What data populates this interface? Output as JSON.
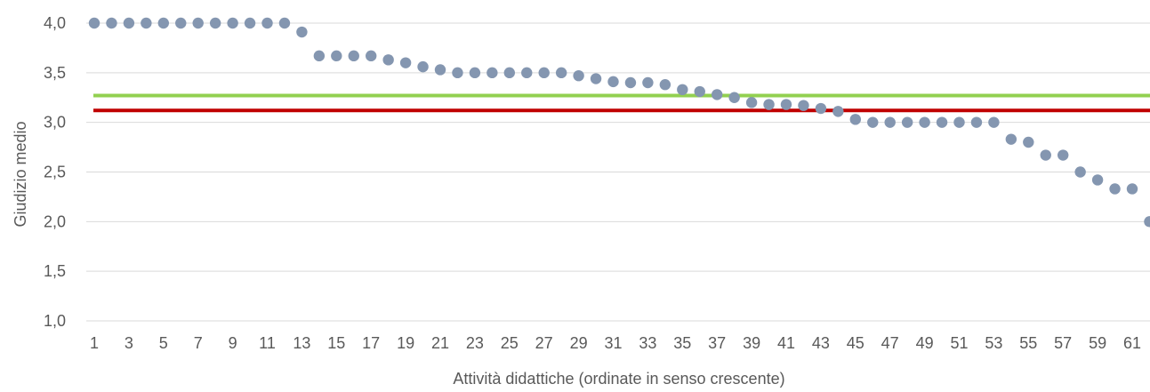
{
  "chart_data": {
    "type": "scatter",
    "xlabel": "Attività didattiche (ordinate in senso crescente)",
    "ylabel": "Giudizio medio",
    "ylim": [
      1.0,
      4.0
    ],
    "y_ticks": [
      "1,0",
      "1,5",
      "2,0",
      "2,5",
      "3,0",
      "3,5",
      "4,0"
    ],
    "x_ticks": [
      "1",
      "3",
      "5",
      "7",
      "9",
      "11",
      "13",
      "15",
      "17",
      "19",
      "21",
      "23",
      "25",
      "27",
      "29",
      "31",
      "33",
      "35",
      "37",
      "39",
      "41",
      "43",
      "45",
      "47",
      "49",
      "51",
      "53",
      "55",
      "57",
      "59",
      "61"
    ],
    "grid": true,
    "series": [
      {
        "color": "#8496b0",
        "x": [
          1,
          2,
          3,
          4,
          5,
          6,
          7,
          8,
          9,
          10,
          11,
          12,
          13,
          14,
          15,
          16,
          17,
          18,
          19,
          20,
          21,
          22,
          23,
          24,
          25,
          26,
          27,
          28,
          29,
          30,
          31,
          32,
          33,
          34,
          35,
          36,
          37,
          38,
          39,
          40,
          41,
          42,
          43,
          44,
          45,
          46,
          47,
          48,
          49,
          50,
          51,
          52,
          53,
          54,
          55,
          56,
          57,
          58,
          59,
          60,
          61,
          62
        ],
        "values": [
          4.0,
          4.0,
          4.0,
          4.0,
          4.0,
          4.0,
          4.0,
          4.0,
          4.0,
          4.0,
          4.0,
          4.0,
          3.91,
          3.67,
          3.67,
          3.67,
          3.67,
          3.63,
          3.6,
          3.56,
          3.53,
          3.5,
          3.5,
          3.5,
          3.5,
          3.5,
          3.5,
          3.5,
          3.47,
          3.44,
          3.41,
          3.4,
          3.4,
          3.38,
          3.33,
          3.31,
          3.28,
          3.25,
          3.2,
          3.18,
          3.18,
          3.17,
          3.14,
          3.11,
          3.03,
          3.0,
          3.0,
          3.0,
          3.0,
          3.0,
          3.0,
          3.0,
          3.0,
          2.83,
          2.8,
          2.67,
          2.67,
          2.5,
          2.42,
          2.33,
          2.33,
          2.0
        ]
      }
    ],
    "reference_lines": [
      {
        "value": 3.27,
        "color": "#92d050"
      },
      {
        "value": 3.12,
        "color": "#c00000"
      }
    ]
  }
}
